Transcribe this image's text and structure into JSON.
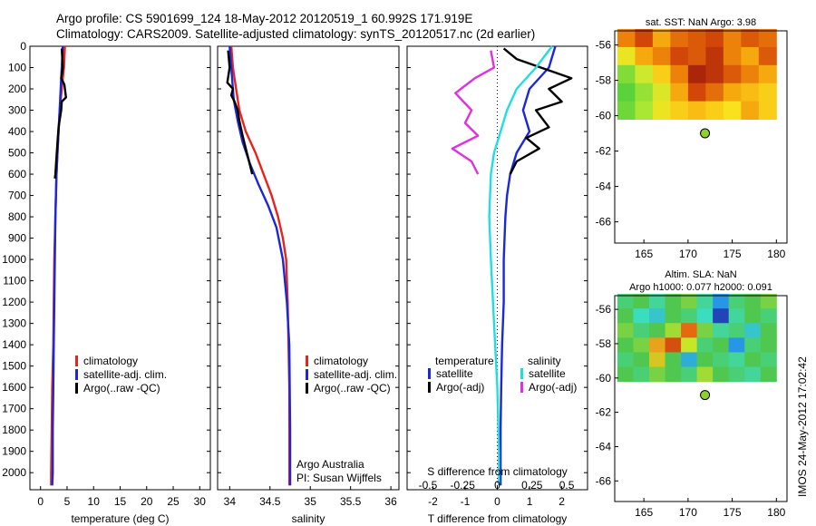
{
  "header": {
    "line1": "Argo profile: CS 5901699_124 18-May-2012 20120519_1 60.992S 171.919E",
    "line2": "Climatology: CARS2009. Satellite-adjusted climatology: synTS_20120517.nc (2d earlier)"
  },
  "colors": {
    "climatology": "#e8231b",
    "satellite": "#1a28d8",
    "argo": "#000000",
    "sal_satellite": "#22dde0",
    "sal_argo": "#e030e0",
    "marker": "#8fd12a"
  },
  "chart_data": [
    {
      "type": "line",
      "xlabel": "temperature (deg C)",
      "ylabel": "",
      "xlim": [
        -2,
        32
      ],
      "ylim": [
        2080,
        0
      ],
      "xticks": [
        "0",
        "5",
        "10",
        "15",
        "20",
        "25",
        "30"
      ],
      "xtick_values": [
        0,
        5,
        10,
        15,
        20,
        25,
        30
      ],
      "yticks": [
        "0",
        "100",
        "200",
        "300",
        "400",
        "500",
        "600",
        "700",
        "800",
        "900",
        "1000",
        "1100",
        "1200",
        "1300",
        "1400",
        "1500",
        "1600",
        "1700",
        "1800",
        "1900",
        "2000"
      ],
      "ytick_values": [
        0,
        100,
        200,
        300,
        400,
        500,
        600,
        700,
        800,
        900,
        1000,
        1100,
        1200,
        1300,
        1400,
        1500,
        1600,
        1700,
        1800,
        1900,
        2000
      ],
      "legend": {
        "position": "lower-center",
        "entries": [
          "climatology",
          "satellite-adj. clim.",
          "Argo(..raw -QC)"
        ]
      },
      "series": [
        {
          "name": "climatology",
          "color": "#e8231b",
          "x": [
            4.6,
            4.4,
            4.0,
            3.6,
            3.4,
            3.2,
            3.0,
            2.8,
            2.6,
            2.5,
            2.4,
            2.3,
            2.2,
            2.1,
            2.0,
            2.0
          ],
          "y": [
            0,
            100,
            200,
            300,
            400,
            500,
            600,
            800,
            1000,
            1200,
            1400,
            1500,
            1600,
            1800,
            2000,
            2060
          ]
        },
        {
          "name": "satellite-adj. clim.",
          "color": "#1a28d8",
          "x": [
            4.2,
            4.0,
            3.8,
            3.6,
            3.4,
            3.2,
            3.0,
            2.8,
            2.7,
            2.6,
            2.5,
            2.4,
            2.3,
            2.3,
            2.2
          ],
          "y": [
            0,
            100,
            200,
            300,
            400,
            500,
            600,
            800,
            1000,
            1200,
            1400,
            1600,
            1800,
            2000,
            2060
          ]
        },
        {
          "name": "Argo(..raw -QC)",
          "color": "#000000",
          "x": [
            4.0,
            4.2,
            3.9,
            4.5,
            4.8,
            4.0,
            3.9,
            3.4,
            3.2,
            3.0,
            2.9,
            2.8,
            2.7
          ],
          "y": [
            10,
            100,
            150,
            180,
            240,
            260,
            300,
            380,
            450,
            520,
            560,
            600,
            620
          ]
        }
      ]
    },
    {
      "type": "line",
      "xlabel": "salinity",
      "ylabel": "",
      "xlim": [
        33.85,
        36.1
      ],
      "ylim": [
        2080,
        0
      ],
      "xticks": [
        "34",
        "34.5",
        "35",
        "35.5",
        "36"
      ],
      "xtick_values": [
        34,
        34.5,
        35,
        35.5,
        36
      ],
      "legend": {
        "position": "lower-right",
        "entries": [
          "climatology",
          "satellite-adj. clim.",
          "Argo(..raw -QC)"
        ]
      },
      "annotations": [
        "Argo Australia",
        "PI: Susan Wijffels"
      ],
      "series": [
        {
          "name": "climatology",
          "color": "#e8231b",
          "x": [
            34.02,
            34.04,
            34.08,
            34.12,
            34.2,
            34.32,
            34.42,
            34.52,
            34.6,
            34.66,
            34.7,
            34.72,
            34.73,
            34.74,
            34.74,
            34.74
          ],
          "y": [
            0,
            100,
            200,
            300,
            400,
            500,
            600,
            700,
            800,
            900,
            1000,
            1200,
            1400,
            1600,
            1800,
            2060
          ]
        },
        {
          "name": "satellite-adj. clim.",
          "color": "#1a28d8",
          "x": [
            34.0,
            34.02,
            34.03,
            34.05,
            34.1,
            34.16,
            34.25,
            34.36,
            34.48,
            34.58,
            34.66,
            34.71,
            34.74,
            34.75,
            34.75
          ],
          "y": [
            0,
            100,
            150,
            250,
            350,
            450,
            550,
            650,
            750,
            850,
            1000,
            1200,
            1400,
            1800,
            2060
          ]
        },
        {
          "name": "Argo(..raw -QC)",
          "color": "#000000",
          "x": [
            33.98,
            34.0,
            33.97,
            34.04,
            34.02,
            34.06,
            34.1,
            34.12,
            34.16,
            34.2,
            34.24,
            34.28
          ],
          "y": [
            20,
            100,
            170,
            200,
            230,
            260,
            300,
            350,
            420,
            480,
            540,
            600
          ]
        }
      ]
    },
    {
      "type": "line",
      "xlabel": "T difference from climatology",
      "ylabel": "",
      "xlim": [
        -2.8,
        2.8
      ],
      "ylim": [
        2080,
        0
      ],
      "xticks": [
        "-2",
        "-1",
        "0",
        "1",
        "2"
      ],
      "xtick_values": [
        -2,
        -1,
        0,
        1,
        2
      ],
      "secondary_axis": {
        "label": "S difference from climatology",
        "ticks": [
          "-0.5",
          "-0.25",
          "0",
          "0.25",
          "0.5"
        ],
        "tick_values": [
          -0.5,
          -0.25,
          0,
          0.25,
          0.5
        ]
      },
      "legend": {
        "position": "lower-center",
        "groups": [
          {
            "title": "temperature",
            "entries": [
              "satellite",
              "Argo(-adj)"
            ]
          },
          {
            "title": "salinity",
            "entries": [
              "satellite",
              "Argo(-adj)"
            ]
          }
        ]
      },
      "series": [
        {
          "name": "satellite",
          "group": "temperature",
          "color": "#1a28d8",
          "x": [
            1.8,
            1.6,
            1.0,
            0.8,
            1.0,
            0.6,
            0.4,
            0.3,
            0.25,
            0.2,
            0.2,
            0.15,
            0.12,
            0.1,
            0.1
          ],
          "y": [
            0,
            100,
            200,
            300,
            400,
            500,
            600,
            700,
            800,
            1000,
            1200,
            1400,
            1600,
            1800,
            2060
          ]
        },
        {
          "name": "Argo(-adj)",
          "group": "temperature",
          "color": "#000000",
          "x": [
            0.2,
            0.6,
            2.3,
            1.6,
            2.0,
            1.2,
            1.6,
            0.9,
            1.3,
            0.6,
            0.4
          ],
          "y": [
            10,
            60,
            150,
            200,
            260,
            300,
            380,
            430,
            480,
            540,
            600
          ]
        },
        {
          "name": "satellite",
          "group": "salinity",
          "color": "#22dde0",
          "x": [
            1.7,
            1.2,
            0.6,
            0.3,
            0.1,
            -0.1,
            -0.2,
            -0.25,
            -0.2,
            -0.1,
            0.0,
            0.05,
            0.05
          ],
          "y": [
            0,
            100,
            200,
            300,
            400,
            500,
            600,
            800,
            1000,
            1300,
            1600,
            1900,
            2060
          ]
        },
        {
          "name": "Argo(-adj)",
          "group": "salinity",
          "color": "#e030e0",
          "x": [
            -0.2,
            -0.1,
            -0.7,
            -1.3,
            -0.8,
            -1.0,
            -0.6,
            -1.4,
            -0.8,
            -0.6
          ],
          "y": [
            20,
            100,
            150,
            220,
            300,
            360,
            420,
            480,
            540,
            600
          ]
        }
      ]
    },
    {
      "type": "heatmap",
      "title": "sat. SST: NaN Argo: 3.98",
      "xlim": [
        161.7,
        181.2
      ],
      "ylim": [
        -67.2,
        -55.2
      ],
      "xticks": [
        "165",
        "170",
        "175",
        "180"
      ],
      "xtick_values": [
        165,
        170,
        175,
        180
      ],
      "yticks": [
        "-56",
        "-58",
        "-60",
        "-62",
        "-64",
        "-66"
      ],
      "ytick_values": [
        -56,
        -58,
        -60,
        -62,
        -64,
        -66
      ],
      "data_extent": {
        "lon": [
          162,
          180
        ],
        "lat": [
          -60.2,
          -55.1
        ]
      },
      "argo_position": {
        "lon": 171.919,
        "lat": -60.992
      },
      "grid": {
        "rows": 5,
        "cols": 9,
        "values": [
          [
            0.7,
            0.85,
            0.6,
            0.75,
            0.8,
            0.85,
            0.7,
            0.8,
            0.75
          ],
          [
            0.4,
            0.6,
            0.7,
            0.85,
            0.8,
            0.9,
            0.7,
            0.6,
            0.8
          ],
          [
            0.1,
            0.3,
            0.5,
            0.7,
            0.95,
            0.9,
            0.8,
            0.7,
            0.6
          ],
          [
            0.0,
            0.15,
            0.35,
            0.6,
            0.85,
            0.75,
            0.6,
            0.55,
            0.5
          ],
          [
            0.05,
            0.2,
            0.4,
            0.5,
            0.55,
            0.5,
            0.45,
            0.6,
            0.5
          ]
        ]
      }
    },
    {
      "type": "heatmap",
      "title": "Altim. SLA: NaN",
      "subtitle": "Argo h1000: 0.077 h2000: 0.091",
      "xlim": [
        161.7,
        181.2
      ],
      "ylim": [
        -67.2,
        -55.2
      ],
      "xticks": [
        "165",
        "170",
        "175",
        "180"
      ],
      "xtick_values": [
        165,
        170,
        175,
        180
      ],
      "yticks": [
        "-56",
        "-58",
        "-60",
        "-62",
        "-64",
        "-66"
      ],
      "ytick_values": [
        -56,
        -58,
        -60,
        -62,
        -64,
        -66
      ],
      "data_extent": {
        "lon": [
          162,
          180
        ],
        "lat": [
          -60.2,
          -55.1
        ]
      },
      "argo_position": {
        "lon": 171.919,
        "lat": -60.992
      },
      "grid": {
        "rows": 6,
        "cols": 10,
        "values": [
          [
            0.45,
            0.5,
            0.4,
            0.5,
            0.55,
            0.4,
            0.2,
            0.45,
            0.5,
            0.55
          ],
          [
            0.5,
            0.35,
            0.3,
            0.5,
            0.45,
            0.35,
            0.05,
            0.4,
            0.5,
            0.45
          ],
          [
            0.55,
            0.45,
            0.5,
            0.6,
            0.85,
            0.55,
            0.4,
            0.45,
            0.3,
            0.5
          ],
          [
            0.5,
            0.55,
            0.75,
            0.9,
            0.65,
            0.45,
            0.5,
            0.2,
            0.45,
            0.5
          ],
          [
            0.45,
            0.5,
            0.7,
            0.5,
            0.25,
            0.5,
            0.45,
            0.4,
            0.5,
            0.45
          ],
          [
            0.5,
            0.45,
            0.55,
            0.5,
            0.45,
            0.6,
            0.5,
            0.45,
            0.4,
            0.5
          ]
        ]
      }
    }
  ],
  "footer": {
    "stamp": "IMOS 24-May-2012 17:02:42"
  }
}
